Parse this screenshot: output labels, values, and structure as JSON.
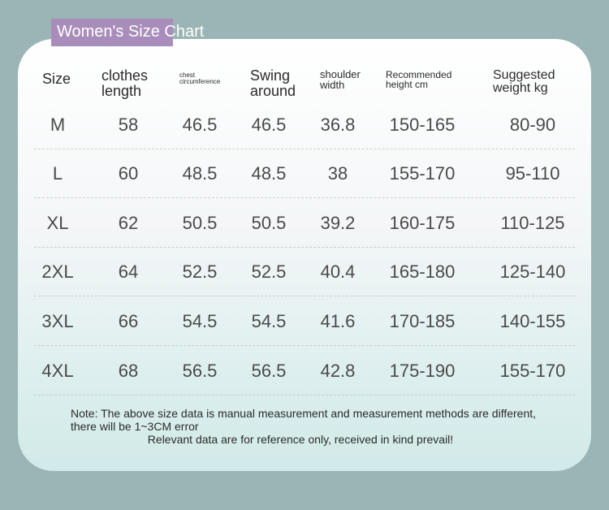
{
  "title": "Women's Size Chart",
  "headers": {
    "size": "Size",
    "clothes_length_1": "clothes",
    "clothes_length_2": "length",
    "chest_1": "chest",
    "chest_2": "circumference",
    "swing_1": "Swing",
    "swing_2": "around",
    "shoulder_1": "shoulder",
    "shoulder_2": "width",
    "height_1": "Recommended",
    "height_2": "height cm",
    "weight_1": "Suggested",
    "weight_2": "weight kg"
  },
  "rows": [
    {
      "size": "M",
      "length": "58",
      "chest": "46.5",
      "swing": "46.5",
      "shoulder": "36.8",
      "height": "150-165",
      "weight": "80-90"
    },
    {
      "size": "L",
      "length": "60",
      "chest": "48.5",
      "swing": "48.5",
      "shoulder": "38",
      "height": "155-170",
      "weight": "95-110"
    },
    {
      "size": "XL",
      "length": "62",
      "chest": "50.5",
      "swing": "50.5",
      "shoulder": "39.2",
      "height": "160-175",
      "weight": "110-125"
    },
    {
      "size": "2XL",
      "length": "64",
      "chest": "52.5",
      "swing": "52.5",
      "shoulder": "40.4",
      "height": "165-180",
      "weight": "125-140"
    },
    {
      "size": "3XL",
      "length": "66",
      "chest": "54.5",
      "swing": "54.5",
      "shoulder": "41.6",
      "height": "170-185",
      "weight": "140-155"
    },
    {
      "size": "4XL",
      "length": "68",
      "chest": "56.5",
      "swing": "56.5",
      "shoulder": "42.8",
      "height": "175-190",
      "weight": "155-170"
    }
  ],
  "note": {
    "line1": "Note: The above size data is manual measurement and measurement methods are different, there will be 1~3CM error",
    "line2": "Relevant data are for reference only, received in kind prevail!"
  },
  "colors": {
    "background": "#9bb4b5",
    "title_tag": "#a88dbb",
    "text": "#4a4a4a"
  }
}
